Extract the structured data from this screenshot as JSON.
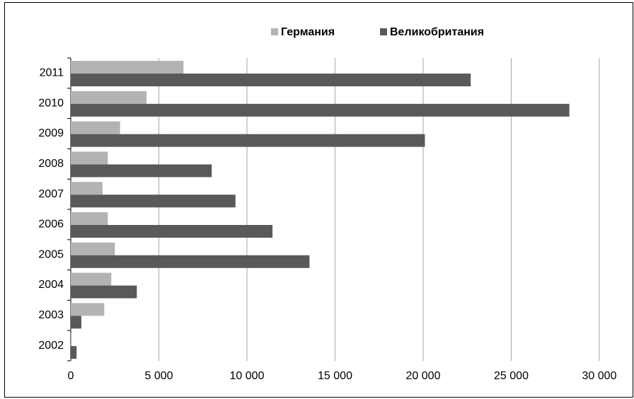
{
  "chart_data": {
    "type": "hbar",
    "categories": [
      "2002",
      "2003",
      "2004",
      "2005",
      "2006",
      "2007",
      "2008",
      "2009",
      "2010",
      "2011"
    ],
    "series": [
      {
        "name": "Германия",
        "color": "#b3b3b3",
        "values": [
          50,
          1900,
          2300,
          2500,
          2100,
          1800,
          2100,
          2800,
          4300,
          6400
        ]
      },
      {
        "name": "Великобритания",
        "color": "#595959",
        "values": [
          330,
          600,
          3750,
          13550,
          11450,
          9350,
          8000,
          20100,
          28300,
          22700
        ]
      }
    ],
    "xlim": [
      0,
      30000
    ],
    "xticks": [
      0,
      {
        "value": 5000,
        "label": "5 000"
      },
      {
        "value": 10000,
        "label": "10 000"
      },
      {
        "value": 15000,
        "label": "15 000"
      },
      {
        "value": 20000,
        "label": "20 000"
      },
      {
        "value": 25000,
        "label": "25 000"
      },
      {
        "value": 30000,
        "label": "30 000"
      }
    ],
    "grid": true,
    "legend": "top"
  }
}
